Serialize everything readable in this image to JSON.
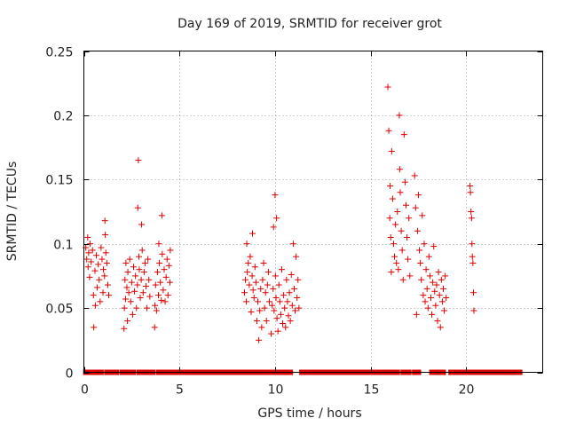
{
  "chart_data": {
    "type": "scatter",
    "title": "Day 169 of 2019, SRMTID for receiver grot",
    "xlabel": "GPS time / hours",
    "ylabel": "SRMTID / TECUs",
    "xlim": [
      0,
      24
    ],
    "ylim": [
      0,
      0.25
    ],
    "xticks": [
      0,
      5,
      10,
      15,
      20
    ],
    "xtick_labels": [
      "0",
      "5",
      "10",
      "15",
      "20"
    ],
    "yticks": [
      0,
      0.05,
      0.1,
      0.15,
      0.2,
      0.25
    ],
    "ytick_labels": [
      "0",
      "0.05",
      "0.1",
      "0.15",
      "0.2",
      "0.25"
    ],
    "grid": true,
    "marker": "+",
    "color": "#dd0000",
    "series": [
      {
        "name": "SRMTID",
        "points": [
          [
            0.1,
            0.097
          ],
          [
            0.15,
            0.088
          ],
          [
            0.2,
            0.105
          ],
          [
            0.22,
            0.082
          ],
          [
            0.25,
            0.093
          ],
          [
            0.3,
            0.074
          ],
          [
            0.33,
            0.1
          ],
          [
            0.38,
            0.086
          ],
          [
            0.45,
            0.095
          ],
          [
            0.5,
            0.06
          ],
          [
            0.52,
            0.035
          ],
          [
            0.58,
            0.079
          ],
          [
            0.6,
            0.052
          ],
          [
            0.65,
            0.091
          ],
          [
            0.7,
            0.066
          ],
          [
            0.75,
            0.084
          ],
          [
            0.8,
            0.072
          ],
          [
            0.85,
            0.055
          ],
          [
            0.9,
            0.097
          ],
          [
            0.95,
            0.088
          ],
          [
            1.0,
            0.062
          ],
          [
            1.02,
            0.08
          ],
          [
            1.08,
            0.075
          ],
          [
            1.1,
            0.118
          ],
          [
            1.12,
            0.107
          ],
          [
            1.15,
            0.093
          ],
          [
            1.2,
            0.085
          ],
          [
            1.25,
            0.068
          ],
          [
            1.3,
            0.06
          ],
          [
            2.1,
            0.034
          ],
          [
            2.12,
            0.05
          ],
          [
            2.15,
            0.072
          ],
          [
            2.18,
            0.057
          ],
          [
            2.2,
            0.085
          ],
          [
            2.25,
            0.066
          ],
          [
            2.28,
            0.04
          ],
          [
            2.3,
            0.078
          ],
          [
            2.35,
            0.062
          ],
          [
            2.4,
            0.088
          ],
          [
            2.45,
            0.055
          ],
          [
            2.5,
            0.07
          ],
          [
            2.55,
            0.045
          ],
          [
            2.6,
            0.082
          ],
          [
            2.65,
            0.063
          ],
          [
            2.7,
            0.075
          ],
          [
            2.75,
            0.05
          ],
          [
            2.8,
            0.068
          ],
          [
            2.82,
            0.128
          ],
          [
            2.85,
            0.165
          ],
          [
            2.88,
            0.09
          ],
          [
            2.9,
            0.08
          ],
          [
            2.95,
            0.058
          ],
          [
            3.0,
            0.072
          ],
          [
            3.02,
            0.115
          ],
          [
            3.05,
            0.095
          ],
          [
            3.1,
            0.062
          ],
          [
            3.15,
            0.078
          ],
          [
            3.2,
            0.085
          ],
          [
            3.25,
            0.067
          ],
          [
            3.3,
            0.05
          ],
          [
            3.35,
            0.088
          ],
          [
            3.4,
            0.072
          ],
          [
            3.45,
            0.059
          ],
          [
            3.7,
            0.035
          ],
          [
            3.72,
            0.052
          ],
          [
            3.75,
            0.068
          ],
          [
            3.8,
            0.048
          ],
          [
            3.85,
            0.078
          ],
          [
            3.9,
            0.06
          ],
          [
            3.92,
            0.1
          ],
          [
            3.95,
            0.085
          ],
          [
            4.0,
            0.07
          ],
          [
            4.05,
            0.056
          ],
          [
            4.08,
            0.122
          ],
          [
            4.1,
            0.092
          ],
          [
            4.15,
            0.064
          ],
          [
            4.2,
            0.08
          ],
          [
            4.25,
            0.055
          ],
          [
            4.3,
            0.074
          ],
          [
            4.35,
            0.088
          ],
          [
            4.4,
            0.06
          ],
          [
            4.45,
            0.083
          ],
          [
            4.5,
            0.07
          ],
          [
            4.52,
            0.095
          ],
          [
            8.4,
            0.062
          ],
          [
            8.45,
            0.072
          ],
          [
            8.5,
            0.055
          ],
          [
            8.52,
            0.1
          ],
          [
            8.55,
            0.078
          ],
          [
            8.6,
            0.085
          ],
          [
            8.65,
            0.068
          ],
          [
            8.7,
            0.09
          ],
          [
            8.75,
            0.047
          ],
          [
            8.8,
            0.075
          ],
          [
            8.82,
            0.108
          ],
          [
            8.85,
            0.064
          ],
          [
            8.9,
            0.058
          ],
          [
            8.95,
            0.082
          ],
          [
            9.0,
            0.07
          ],
          [
            9.05,
            0.04
          ],
          [
            9.1,
            0.055
          ],
          [
            9.15,
            0.025
          ],
          [
            9.2,
            0.048
          ],
          [
            9.25,
            0.065
          ],
          [
            9.3,
            0.035
          ],
          [
            9.35,
            0.072
          ],
          [
            9.4,
            0.085
          ],
          [
            9.45,
            0.05
          ],
          [
            9.5,
            0.062
          ],
          [
            9.55,
            0.04
          ],
          [
            9.6,
            0.068
          ],
          [
            9.65,
            0.078
          ],
          [
            9.7,
            0.055
          ],
          [
            9.8,
            0.03
          ],
          [
            9.85,
            0.052
          ],
          [
            9.9,
            0.065
          ],
          [
            9.92,
            0.113
          ],
          [
            9.95,
            0.048
          ],
          [
            10.0,
            0.138
          ],
          [
            10.02,
            0.075
          ],
          [
            10.05,
            0.058
          ],
          [
            10.08,
            0.12
          ],
          [
            10.1,
            0.042
          ],
          [
            10.15,
            0.032
          ],
          [
            10.2,
            0.068
          ],
          [
            10.25,
            0.055
          ],
          [
            10.3,
            0.045
          ],
          [
            10.35,
            0.08
          ],
          [
            10.4,
            0.038
          ],
          [
            10.45,
            0.06
          ],
          [
            10.5,
            0.05
          ],
          [
            10.55,
            0.035
          ],
          [
            10.6,
            0.072
          ],
          [
            10.65,
            0.055
          ],
          [
            10.7,
            0.044
          ],
          [
            10.75,
            0.062
          ],
          [
            10.8,
            0.04
          ],
          [
            10.85,
            0.076
          ],
          [
            10.9,
            0.052
          ],
          [
            10.95,
            0.1
          ],
          [
            11.0,
            0.065
          ],
          [
            11.05,
            0.048
          ],
          [
            11.1,
            0.09
          ],
          [
            11.15,
            0.058
          ],
          [
            11.2,
            0.072
          ],
          [
            11.25,
            0.05
          ],
          [
            15.9,
            0.222
          ],
          [
            15.95,
            0.188
          ],
          [
            16.0,
            0.12
          ],
          [
            16.02,
            0.145
          ],
          [
            16.05,
            0.105
          ],
          [
            16.08,
            0.078
          ],
          [
            16.1,
            0.172
          ],
          [
            16.15,
            0.135
          ],
          [
            16.2,
            0.1
          ],
          [
            16.25,
            0.09
          ],
          [
            16.3,
            0.115
          ],
          [
            16.35,
            0.085
          ],
          [
            16.4,
            0.125
          ],
          [
            16.45,
            0.08
          ],
          [
            16.5,
            0.2
          ],
          [
            16.52,
            0.158
          ],
          [
            16.55,
            0.14
          ],
          [
            16.6,
            0.11
          ],
          [
            16.65,
            0.095
          ],
          [
            16.7,
            0.072
          ],
          [
            16.75,
            0.185
          ],
          [
            16.8,
            0.148
          ],
          [
            16.85,
            0.13
          ],
          [
            16.9,
            0.105
          ],
          [
            16.95,
            0.088
          ],
          [
            17.0,
            0.12
          ],
          [
            17.05,
            0.075
          ],
          [
            17.3,
            0.153
          ],
          [
            17.35,
            0.128
          ],
          [
            17.4,
            0.045
          ],
          [
            17.45,
            0.11
          ],
          [
            17.5,
            0.138
          ],
          [
            17.55,
            0.095
          ],
          [
            17.6,
            0.085
          ],
          [
            17.65,
            0.072
          ],
          [
            17.7,
            0.122
          ],
          [
            17.75,
            0.06
          ],
          [
            17.8,
            0.1
          ],
          [
            17.85,
            0.055
          ],
          [
            17.9,
            0.08
          ],
          [
            17.95,
            0.065
          ],
          [
            18.0,
            0.05
          ],
          [
            18.05,
            0.09
          ],
          [
            18.1,
            0.075
          ],
          [
            18.15,
            0.058
          ],
          [
            18.2,
            0.045
          ],
          [
            18.25,
            0.07
          ],
          [
            18.3,
            0.098
          ],
          [
            18.35,
            0.063
          ],
          [
            18.4,
            0.052
          ],
          [
            18.45,
            0.068
          ],
          [
            18.5,
            0.04
          ],
          [
            18.55,
            0.078
          ],
          [
            18.6,
            0.06
          ],
          [
            18.65,
            0.035
          ],
          [
            18.7,
            0.072
          ],
          [
            18.75,
            0.055
          ],
          [
            18.8,
            0.065
          ],
          [
            18.85,
            0.048
          ],
          [
            18.9,
            0.075
          ],
          [
            18.95,
            0.058
          ],
          [
            20.2,
            0.145
          ],
          [
            20.22,
            0.14
          ],
          [
            20.25,
            0.125
          ],
          [
            20.28,
            0.12
          ],
          [
            20.3,
            0.1
          ],
          [
            20.32,
            0.09
          ],
          [
            20.35,
            0.085
          ],
          [
            20.38,
            0.062
          ],
          [
            20.4,
            0.048
          ]
        ]
      }
    ],
    "zero_segments": [
      [
        0.1,
        0.9
      ],
      [
        1.2,
        1.7
      ],
      [
        2.0,
        2.3
      ],
      [
        2.5,
        2.6
      ],
      [
        2.9,
        3.3
      ],
      [
        3.5,
        3.6
      ],
      [
        3.9,
        4.4
      ],
      [
        4.6,
        8.0
      ],
      [
        8.2,
        8.8
      ],
      [
        9.0,
        9.6
      ],
      [
        9.8,
        10.4
      ],
      [
        10.6,
        10.8
      ],
      [
        11.4,
        15.8
      ],
      [
        16.0,
        16.4
      ],
      [
        16.7,
        17.0
      ],
      [
        17.3,
        17.5
      ],
      [
        18.2,
        18.8
      ],
      [
        19.2,
        20.0
      ],
      [
        20.2,
        22.8
      ]
    ]
  }
}
